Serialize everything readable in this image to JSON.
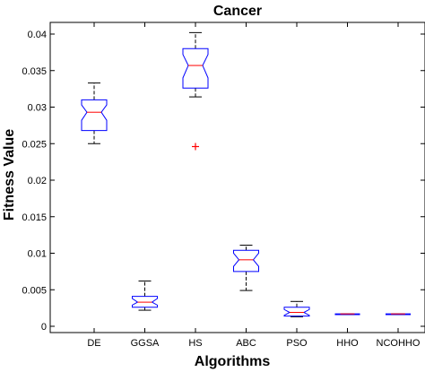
{
  "chart_data": {
    "type": "boxplot",
    "title": "Cancer",
    "xlabel": "Algorithms",
    "ylabel": "Fitness Value",
    "ylim": [
      -0.0005,
      0.042
    ],
    "yticks": [
      0,
      0.005,
      0.01,
      0.015,
      0.02,
      0.025,
      0.03,
      0.035,
      0.04
    ],
    "ytick_labels": [
      "0",
      "0.005",
      "0.01",
      "0.015",
      "0.02",
      "0.025",
      "0.03",
      "0.035",
      "0.04"
    ],
    "categories": [
      "DE",
      "GGSA",
      "HS",
      "ABC",
      "PSO",
      "HHO",
      "NCOHHO"
    ],
    "boxes": [
      {
        "whisker_low": 0.025,
        "q1": 0.0268,
        "median": 0.0293,
        "q3": 0.031,
        "whisker_high": 0.0333,
        "notch_low": 0.0282,
        "notch_high": 0.0303,
        "outliers": []
      },
      {
        "whisker_low": 0.0022,
        "q1": 0.0026,
        "median": 0.0033,
        "q3": 0.0041,
        "whisker_high": 0.0062,
        "notch_low": 0.0029,
        "notch_high": 0.0038,
        "outliers": []
      },
      {
        "whisker_low": 0.0314,
        "q1": 0.0326,
        "median": 0.0357,
        "q3": 0.038,
        "whisker_high": 0.0402,
        "notch_low": 0.034,
        "notch_high": 0.0372,
        "outliers": [
          0.0246
        ]
      },
      {
        "whisker_low": 0.0049,
        "q1": 0.0075,
        "median": 0.0091,
        "q3": 0.0104,
        "whisker_high": 0.0111,
        "notch_low": 0.0082,
        "notch_high": 0.01,
        "outliers": []
      },
      {
        "whisker_low": 0.0013,
        "q1": 0.0014,
        "median": 0.0019,
        "q3": 0.0026,
        "whisker_high": 0.0034,
        "notch_low": 0.0015,
        "notch_high": 0.0023,
        "outliers": []
      },
      {
        "whisker_low": 0.0016,
        "q1": 0.0016,
        "median": 0.0017,
        "q3": 0.0017,
        "whisker_high": 0.0017,
        "notch_low": 0.0016,
        "notch_high": 0.0017,
        "outliers": []
      },
      {
        "whisker_low": 0.0016,
        "q1": 0.0016,
        "median": 0.0017,
        "q3": 0.0017,
        "whisker_high": 0.0017,
        "notch_low": 0.0016,
        "notch_high": 0.0017,
        "outliers": []
      }
    ],
    "colors": {
      "box": "#0000ff",
      "median": "#ff0000",
      "whisker": "#000000",
      "outlier": "#ff0000",
      "axes": "#000000"
    },
    "grid": false
  }
}
